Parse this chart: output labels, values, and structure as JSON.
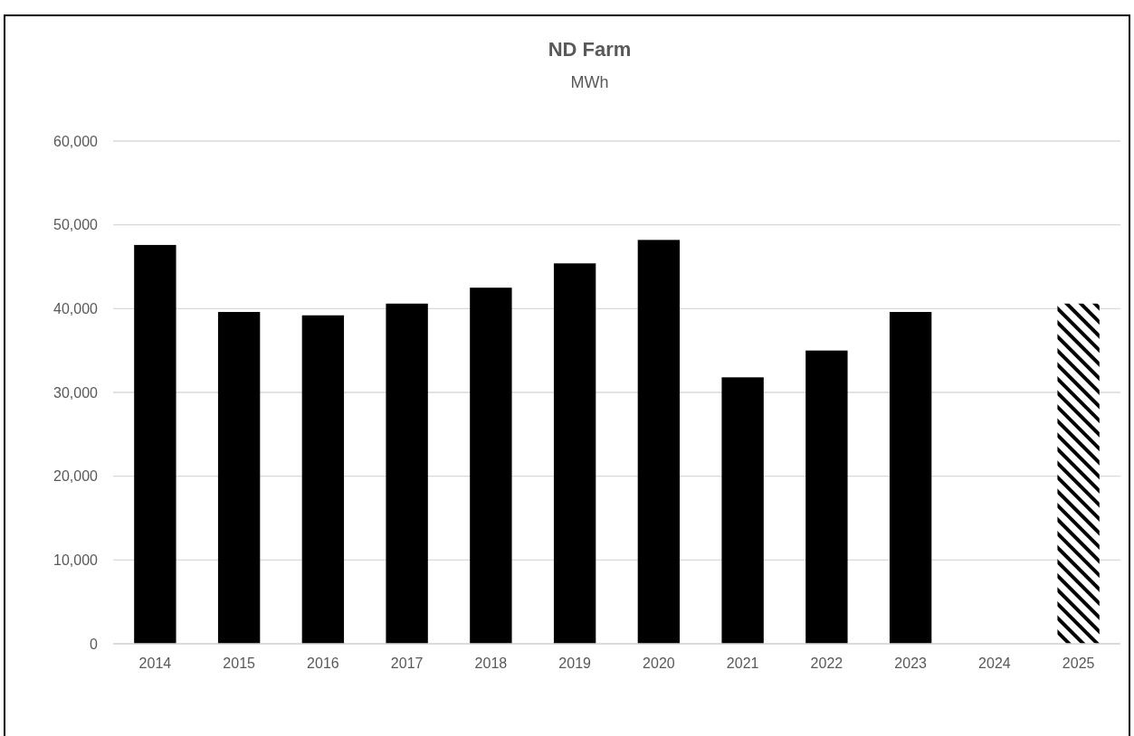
{
  "chart_data": {
    "type": "bar",
    "title": "ND Farm",
    "subtitle": "MWh",
    "categories": [
      "2014",
      "2015",
      "2016",
      "2017",
      "2018",
      "2019",
      "2020",
      "2021",
      "2022",
      "2023",
      "2024",
      "2025"
    ],
    "series": [
      {
        "color": "#000000",
        "values": [
          47600,
          39600,
          39200,
          40600,
          42500,
          45400,
          48200,
          31800,
          35000,
          39600,
          null,
          null
        ]
      },
      {
        "color": "#000000",
        "values": [
          null,
          null,
          null,
          null,
          null,
          null,
          null,
          null,
          null,
          null,
          null,
          40600
        ]
      }
    ],
    "ylim": [
      0,
      60000
    ],
    "yticks": [
      {
        "value": 0,
        "label": "0"
      },
      {
        "value": 10000,
        "label": "10,000"
      },
      {
        "value": 20000,
        "label": "20,000"
      },
      {
        "value": 30000,
        "label": "30,000"
      },
      {
        "value": 40000,
        "label": "40,000"
      },
      {
        "value": 50000,
        "label": "50,000"
      },
      {
        "value": 60000,
        "label": "60,000"
      }
    ],
    "grid": "y"
  }
}
